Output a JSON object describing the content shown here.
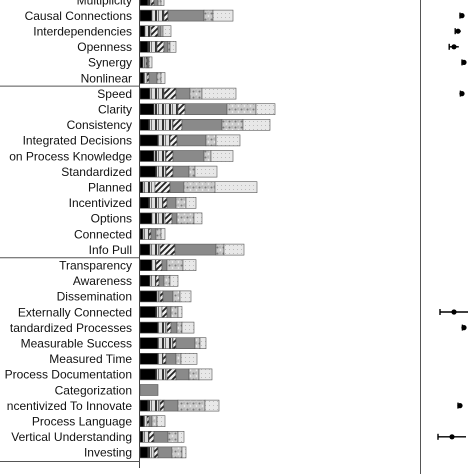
{
  "chart_data": {
    "type": "bar",
    "stacked": true,
    "orientation": "horizontal",
    "categories": [
      "Multiplicity",
      "Causal Connections",
      "Interdependencies",
      "Openness",
      "Synergy",
      "Nonlinear",
      "Speed",
      "Clarity",
      "Consistency",
      "Integrated Decisions",
      "on Process Knowledge",
      "Standardized",
      "Planned",
      "Incentivized",
      "Options",
      "Connected",
      "Info Pull",
      "Transparency",
      "Awareness",
      "Dissemination",
      "Externally Connected",
      "tandardized Processes",
      "Measurable Success",
      "Measured Time",
      "Process Documentation",
      "Categorization",
      "ncentivized To Innovate",
      "Process Language",
      "Vertical Understanding",
      "Investing"
    ],
    "group_breaks_after": [
      5,
      16
    ],
    "series": [
      {
        "values": [
          8,
          12,
          5,
          8,
          3,
          4,
          10,
          14,
          9,
          18,
          14,
          16,
          3,
          9,
          12,
          3,
          10,
          12,
          10,
          17,
          16,
          18,
          18,
          18,
          16,
          0,
          8,
          4,
          3,
          8
        ]
      },
      {
        "values": [
          3,
          12,
          6,
          9,
          3,
          3,
          14,
          24,
          24,
          12,
          12,
          10,
          12,
          14,
          13,
          6,
          10,
          4,
          6,
          3,
          6,
          9,
          15,
          5,
          11,
          0,
          12,
          3,
          6,
          6
        ]
      },
      {
        "values": [
          3,
          4,
          7,
          7,
          1,
          2,
          12,
          7,
          9,
          7,
          7,
          7,
          15,
          4,
          7,
          2,
          15,
          6,
          3,
          3,
          5,
          4,
          3,
          3,
          9,
          0,
          4,
          2,
          5,
          4
        ]
      },
      {
        "values": [
          4,
          36,
          3,
          4,
          1,
          8,
          14,
          42,
          40,
          29,
          31,
          16,
          14,
          9,
          5,
          5,
          41,
          5,
          5,
          10,
          4,
          6,
          19,
          10,
          13,
          18,
          14,
          3,
          14,
          14
        ]
      },
      {
        "values": [
          3,
          9,
          2,
          2,
          1,
          4,
          12,
          29,
          21,
          10,
          7,
          6,
          31,
          10,
          17,
          5,
          8,
          16,
          6,
          7,
          7,
          5,
          5,
          5,
          10,
          0,
          27,
          5,
          10,
          10
        ]
      },
      {
        "values": [
          3,
          20,
          8,
          6,
          3,
          4,
          34,
          19,
          27,
          24,
          22,
          22,
          42,
          10,
          8,
          4,
          20,
          13,
          8,
          11,
          4,
          12,
          6,
          16,
          13,
          0,
          14,
          8,
          6,
          4
        ]
      }
    ],
    "series_colors": [
      "#000000",
      "#cfcfcf",
      "#777777",
      "#999999",
      "#b0b0b0",
      "#e6e6e6"
    ],
    "right_panel": {
      "type": "scatter-errorbar",
      "points": [
        {
          "row": 1,
          "x": 0.55,
          "err": 0.05
        },
        {
          "row": 2,
          "x": 0.45,
          "err": 0.07
        },
        {
          "row": 3,
          "x": 0.35,
          "err": 0.12
        },
        {
          "row": 4,
          "x": 0.6,
          "err": 0.05
        },
        {
          "row": 6,
          "x": 0.55,
          "err": 0.04
        },
        {
          "row": 20,
          "x": 0.35,
          "err": 0.35
        },
        {
          "row": 21,
          "x": 0.6,
          "err": 0.04
        },
        {
          "row": 26,
          "x": 0.5,
          "err": 0.05
        },
        {
          "row": 28,
          "x": 0.3,
          "err": 0.35
        }
      ]
    }
  }
}
